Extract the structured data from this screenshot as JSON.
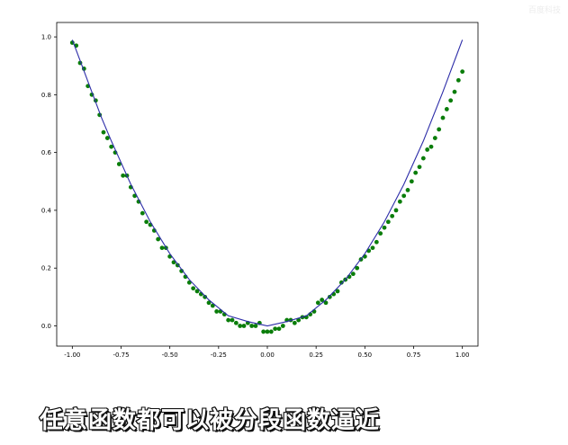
{
  "watermark": "百度科技",
  "caption": "任意函数都可以被分段函数逼近",
  "colors": {
    "line": "#2c2ca8",
    "points": "#0a7d0a"
  },
  "chart_data": {
    "type": "scatter",
    "title": "",
    "xlabel": "",
    "ylabel": "",
    "xlim": [
      -1.08,
      1.08
    ],
    "ylim": [
      -0.07,
      1.05
    ],
    "grid": false,
    "xticks": [
      -1.0,
      -0.75,
      -0.5,
      -0.25,
      0.0,
      0.25,
      0.5,
      0.75,
      1.0
    ],
    "xtick_labels": [
      "-1.00",
      "-0.75",
      "-0.50",
      "-0.25",
      "0.00",
      "0.25",
      "0.50",
      "0.75",
      "1.00"
    ],
    "yticks": [
      0.0,
      0.2,
      0.4,
      0.6,
      0.8,
      1.0
    ],
    "ytick_labels": [
      "0.0",
      "0.2",
      "0.4",
      "0.6",
      "0.8",
      "1.0"
    ],
    "series": [
      {
        "type": "line",
        "x": [
          -1.0,
          -0.95,
          -0.9,
          -0.85,
          -0.8,
          -0.7,
          -0.6,
          -0.5,
          -0.4,
          -0.3,
          -0.2,
          -0.1,
          0.0,
          0.1,
          0.2,
          0.3,
          0.4,
          0.5,
          0.6,
          0.7,
          0.8,
          0.9,
          0.95,
          1.0
        ],
        "y": [
          0.99,
          0.9,
          0.81,
          0.72,
          0.64,
          0.49,
          0.36,
          0.25,
          0.16,
          0.09,
          0.035,
          0.015,
          0.0,
          0.015,
          0.035,
          0.09,
          0.16,
          0.25,
          0.36,
          0.49,
          0.64,
          0.81,
          0.9,
          0.99
        ]
      },
      {
        "type": "scatter",
        "x": [
          -1.0,
          -0.98,
          -0.96,
          -0.94,
          -0.92,
          -0.9,
          -0.88,
          -0.86,
          -0.84,
          -0.82,
          -0.8,
          -0.78,
          -0.76,
          -0.74,
          -0.72,
          -0.7,
          -0.68,
          -0.66,
          -0.64,
          -0.62,
          -0.6,
          -0.58,
          -0.56,
          -0.54,
          -0.52,
          -0.5,
          -0.48,
          -0.46,
          -0.44,
          -0.42,
          -0.4,
          -0.38,
          -0.36,
          -0.34,
          -0.32,
          -0.3,
          -0.28,
          -0.26,
          -0.24,
          -0.22,
          -0.2,
          -0.18,
          -0.16,
          -0.14,
          -0.12,
          -0.1,
          -0.08,
          -0.06,
          -0.04,
          -0.02,
          0.0,
          0.02,
          0.04,
          0.06,
          0.08,
          0.1,
          0.12,
          0.14,
          0.16,
          0.18,
          0.2,
          0.22,
          0.24,
          0.26,
          0.28,
          0.3,
          0.32,
          0.34,
          0.36,
          0.38,
          0.4,
          0.42,
          0.44,
          0.46,
          0.48,
          0.5,
          0.52,
          0.54,
          0.56,
          0.58,
          0.6,
          0.62,
          0.64,
          0.66,
          0.68,
          0.7,
          0.72,
          0.74,
          0.76,
          0.78,
          0.8,
          0.82,
          0.84,
          0.86,
          0.88,
          0.9,
          0.92,
          0.94,
          0.96,
          0.98,
          1.0
        ],
        "y": [
          0.98,
          0.97,
          0.91,
          0.89,
          0.83,
          0.8,
          0.78,
          0.73,
          0.67,
          0.65,
          0.62,
          0.6,
          0.56,
          0.52,
          0.52,
          0.48,
          0.45,
          0.43,
          0.39,
          0.36,
          0.35,
          0.33,
          0.3,
          0.27,
          0.27,
          0.24,
          0.22,
          0.21,
          0.19,
          0.17,
          0.15,
          0.13,
          0.12,
          0.11,
          0.1,
          0.08,
          0.07,
          0.05,
          0.05,
          0.04,
          0.02,
          0.02,
          0.01,
          0.0,
          0.0,
          0.01,
          0.0,
          0.0,
          0.01,
          -0.02,
          -0.02,
          -0.02,
          -0.01,
          -0.01,
          0.0,
          0.02,
          0.02,
          0.01,
          0.02,
          0.03,
          0.03,
          0.04,
          0.05,
          0.08,
          0.09,
          0.08,
          0.1,
          0.11,
          0.12,
          0.15,
          0.16,
          0.17,
          0.18,
          0.2,
          0.23,
          0.24,
          0.26,
          0.27,
          0.29,
          0.32,
          0.34,
          0.36,
          0.38,
          0.4,
          0.43,
          0.45,
          0.47,
          0.5,
          0.53,
          0.55,
          0.58,
          0.61,
          0.62,
          0.65,
          0.68,
          0.72,
          0.75,
          0.78,
          0.81,
          0.85,
          0.88
        ]
      }
    ]
  }
}
